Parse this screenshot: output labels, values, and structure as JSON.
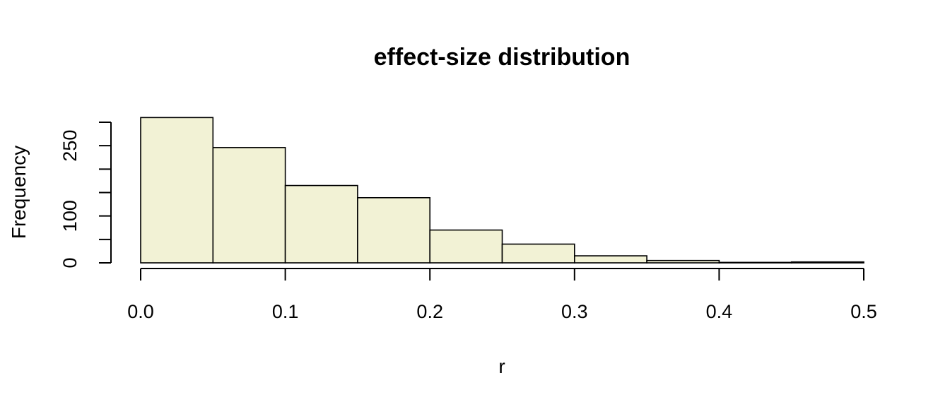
{
  "chart_data": {
    "type": "histogram",
    "title": "effect-size distribution",
    "xlabel": "r",
    "ylabel": "Frequency",
    "bins": [
      {
        "from": 0.0,
        "to": 0.05,
        "count": 310
      },
      {
        "from": 0.05,
        "to": 0.1,
        "count": 246
      },
      {
        "from": 0.1,
        "to": 0.15,
        "count": 165
      },
      {
        "from": 0.15,
        "to": 0.2,
        "count": 139
      },
      {
        "from": 0.2,
        "to": 0.25,
        "count": 70
      },
      {
        "from": 0.25,
        "to": 0.3,
        "count": 40
      },
      {
        "from": 0.3,
        "to": 0.35,
        "count": 15
      },
      {
        "from": 0.35,
        "to": 0.4,
        "count": 5
      },
      {
        "from": 0.4,
        "to": 0.45,
        "count": 1
      },
      {
        "from": 0.45,
        "to": 0.5,
        "count": 2
      }
    ],
    "xlim": [
      0,
      0.5
    ],
    "ylim": [
      0,
      300
    ],
    "x_ticks": [
      "0.0",
      "0.1",
      "0.2",
      "0.3",
      "0.4",
      "0.5"
    ],
    "y_ticks": [
      0,
      50,
      100,
      150,
      200,
      250,
      300
    ],
    "y_tick_labels": [
      "0",
      "",
      "100",
      "",
      "",
      "250",
      ""
    ],
    "bar_color": "#f2f2d5",
    "grid": false
  }
}
